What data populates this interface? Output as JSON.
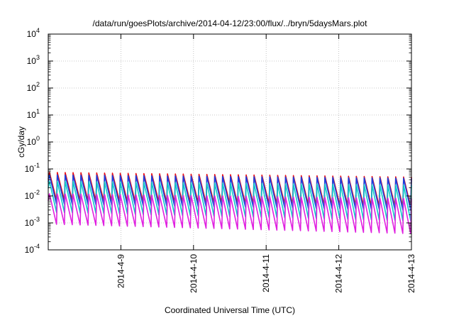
{
  "chart_data": {
    "type": "line",
    "title": "/data/run/goesPlots/archive/2014-04-12/23:00/flux/../bryn/5daysMars.plot",
    "xlabel": "Coordinated Universal Time (UTC)",
    "ylabel": "cGy/day",
    "y_scale": "log",
    "ylim": [
      0.0001,
      10000
    ],
    "xlim": [
      "2014-04-08T00:00",
      "2014-04-13T00:00"
    ],
    "x_ticks": [
      "2014-4-9",
      "2014-4-10",
      "2014-4-11",
      "2014-4-12",
      "2014-4-13"
    ],
    "y_ticks": [
      {
        "base": "10",
        "exp": "-4"
      },
      {
        "base": "10",
        "exp": "-3"
      },
      {
        "base": "10",
        "exp": "-2"
      },
      {
        "base": "10",
        "exp": "-1"
      },
      {
        "base": "10",
        "exp": "0"
      },
      {
        "base": "10",
        "exp": "1"
      },
      {
        "base": "10",
        "exp": "2"
      },
      {
        "base": "10",
        "exp": "3"
      },
      {
        "base": "10",
        "exp": "4"
      }
    ],
    "grid": true,
    "legend": "none",
    "pattern": {
      "period_hours": 2.6,
      "phase_hours": 0.4,
      "drop_hours": 0.25,
      "first_time": "2014-04-08T00:00",
      "last_time": "2014-04-13T00:00"
    },
    "series": [
      {
        "color": "#e8101a",
        "peak": 0.075,
        "trough": 0.007,
        "peak_late": 0.05,
        "trough_late": 0.004
      },
      {
        "color": "#1840e0",
        "peak": 0.06,
        "trough": 0.005,
        "peak_late": 0.045,
        "trough_late": 0.003
      },
      {
        "color": "#10c8c8",
        "peak": 0.035,
        "trough": 0.0025,
        "peak_late": 0.025,
        "trough_late": 0.0012
      },
      {
        "color": "#e020e0",
        "peak": 0.012,
        "trough": 0.0009,
        "peak_late": 0.008,
        "trough_late": 0.0004
      }
    ]
  }
}
